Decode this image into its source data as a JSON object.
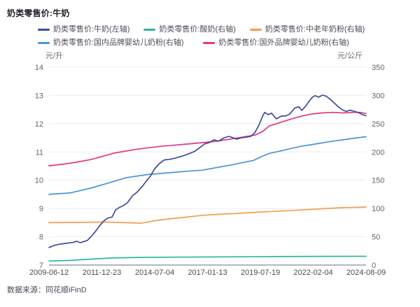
{
  "header": {
    "title": "奶类零售价:牛奶"
  },
  "footer": {
    "source": "数据来源：同花顺iFinD"
  },
  "chart_data": {
    "type": "line",
    "title": "奶类零售价:牛奶",
    "legend_position": "top",
    "grid": true,
    "left_axis": {
      "unit": "元/升",
      "min": 7,
      "max": 14,
      "ticks": [
        14,
        13,
        12,
        11,
        10,
        9,
        8,
        7
      ]
    },
    "right_axis": {
      "unit": "元/公斤",
      "min": 0,
      "max": 350,
      "ticks": [
        350,
        300,
        250,
        200,
        150,
        100,
        50,
        0
      ]
    },
    "x_ticks": [
      "2009-06-12",
      "2011-12-23",
      "2014-07-04",
      "2017-01-13",
      "2019-07-19",
      "2022-02-04",
      "2024-08-09"
    ],
    "x_range_note": "x values in series are fractions 0-1 across the date span 2009-06-12 to 2024-08-09",
    "colors": {
      "grid": "#ececf4",
      "axis_line": "#b3b6c3",
      "tick_text": "#63636e",
      "x_tick_text": "#4a4a55"
    },
    "series": [
      {
        "id": "milk",
        "name": "奶类零售价:牛奶(左轴)",
        "axis": "left",
        "color": "#3d4b9a",
        "points": [
          [
            0,
            7.62
          ],
          [
            0.018,
            7.7
          ],
          [
            0.035,
            7.74
          ],
          [
            0.055,
            7.77
          ],
          [
            0.075,
            7.8
          ],
          [
            0.088,
            7.84
          ],
          [
            0.099,
            7.79
          ],
          [
            0.11,
            7.83
          ],
          [
            0.121,
            7.87
          ],
          [
            0.132,
            8.0
          ],
          [
            0.146,
            8.18
          ],
          [
            0.159,
            8.38
          ],
          [
            0.172,
            8.55
          ],
          [
            0.185,
            8.66
          ],
          [
            0.199,
            8.7
          ],
          [
            0.21,
            8.95
          ],
          [
            0.221,
            9.03
          ],
          [
            0.234,
            9.1
          ],
          [
            0.247,
            9.2
          ],
          [
            0.263,
            9.45
          ],
          [
            0.278,
            9.58
          ],
          [
            0.294,
            9.78
          ],
          [
            0.309,
            10.0
          ],
          [
            0.32,
            10.15
          ],
          [
            0.333,
            10.4
          ],
          [
            0.349,
            10.6
          ],
          [
            0.364,
            10.72
          ],
          [
            0.382,
            10.74
          ],
          [
            0.397,
            10.78
          ],
          [
            0.413,
            10.83
          ],
          [
            0.428,
            10.88
          ],
          [
            0.444,
            10.95
          ],
          [
            0.459,
            11.02
          ],
          [
            0.475,
            11.15
          ],
          [
            0.49,
            11.28
          ],
          [
            0.505,
            11.33
          ],
          [
            0.521,
            11.43
          ],
          [
            0.534,
            11.38
          ],
          [
            0.552,
            11.5
          ],
          [
            0.567,
            11.55
          ],
          [
            0.581,
            11.5
          ],
          [
            0.592,
            11.45
          ],
          [
            0.605,
            11.5
          ],
          [
            0.62,
            11.52
          ],
          [
            0.636,
            11.55
          ],
          [
            0.649,
            11.68
          ],
          [
            0.662,
            11.95
          ],
          [
            0.673,
            12.25
          ],
          [
            0.68,
            12.4
          ],
          [
            0.691,
            12.32
          ],
          [
            0.702,
            12.37
          ],
          [
            0.717,
            12.17
          ],
          [
            0.733,
            12.27
          ],
          [
            0.746,
            12.27
          ],
          [
            0.759,
            12.34
          ],
          [
            0.775,
            12.55
          ],
          [
            0.788,
            12.6
          ],
          [
            0.797,
            12.47
          ],
          [
            0.808,
            12.6
          ],
          [
            0.819,
            12.77
          ],
          [
            0.83,
            12.93
          ],
          [
            0.839,
            12.99
          ],
          [
            0.85,
            12.94
          ],
          [
            0.863,
            13.01
          ],
          [
            0.874,
            12.97
          ],
          [
            0.885,
            12.88
          ],
          [
            0.898,
            12.75
          ],
          [
            0.912,
            12.6
          ],
          [
            0.925,
            12.49
          ],
          [
            0.938,
            12.43
          ],
          [
            0.949,
            12.48
          ],
          [
            0.962,
            12.44
          ],
          [
            0.976,
            12.39
          ],
          [
            0.989,
            12.32
          ],
          [
            1,
            12.28
          ]
        ]
      },
      {
        "id": "yogurt",
        "name": "奶类零售价:酸奶(右轴)",
        "axis": "right",
        "color": "#2bb6a3",
        "points": [
          [
            0,
            7
          ],
          [
            0.06,
            8
          ],
          [
            0.12,
            10
          ],
          [
            0.2,
            12.5
          ],
          [
            0.28,
            13.5
          ],
          [
            0.4,
            14
          ],
          [
            0.55,
            14.5
          ],
          [
            0.7,
            15
          ],
          [
            0.85,
            15.3
          ],
          [
            1,
            15.5
          ]
        ]
      },
      {
        "id": "senior-milk-powder",
        "name": "奶类零售价:中老年奶粉(右轴)",
        "axis": "right",
        "color": "#f49d4c",
        "points": [
          [
            0,
            75
          ],
          [
            0.09,
            75.5
          ],
          [
            0.18,
            76
          ],
          [
            0.24,
            75
          ],
          [
            0.29,
            74
          ],
          [
            0.33,
            78
          ],
          [
            0.37,
            81
          ],
          [
            0.42,
            84
          ],
          [
            0.486,
            88
          ],
          [
            0.53,
            89.5
          ],
          [
            0.6,
            91.5
          ],
          [
            0.66,
            93.5
          ],
          [
            0.73,
            95.5
          ],
          [
            0.8,
            97.5
          ],
          [
            0.86,
            99.5
          ],
          [
            0.93,
            101.5
          ],
          [
            1,
            102.5
          ]
        ]
      },
      {
        "id": "domestic-infant-formula",
        "name": "奶类零售价:国内品牌婴幼儿奶粉(右轴)",
        "axis": "right",
        "color": "#4a94d9",
        "points": [
          [
            0,
            125
          ],
          [
            0.066,
            127.5
          ],
          [
            0.132,
            136
          ],
          [
            0.205,
            148
          ],
          [
            0.243,
            154.5
          ],
          [
            0.31,
            160
          ],
          [
            0.353,
            162
          ],
          [
            0.426,
            165.5
          ],
          [
            0.486,
            168
          ],
          [
            0.53,
            172.5
          ],
          [
            0.574,
            177
          ],
          [
            0.618,
            182
          ],
          [
            0.645,
            185
          ],
          [
            0.673,
            192.5
          ],
          [
            0.695,
            197.5
          ],
          [
            0.729,
            201.5
          ],
          [
            0.762,
            206
          ],
          [
            0.795,
            210
          ],
          [
            0.839,
            214
          ],
          [
            0.883,
            218
          ],
          [
            0.927,
            221.5
          ],
          [
            0.971,
            225
          ],
          [
            1,
            227
          ]
        ]
      },
      {
        "id": "foreign-infant-formula",
        "name": "奶类零售价:国外品牌婴幼儿奶粉(右轴)",
        "axis": "right",
        "color": "#e2387f",
        "points": [
          [
            0,
            175.5
          ],
          [
            0.066,
            180
          ],
          [
            0.132,
            186.5
          ],
          [
            0.205,
            198
          ],
          [
            0.28,
            205
          ],
          [
            0.353,
            210
          ],
          [
            0.426,
            213.5
          ],
          [
            0.486,
            216.5
          ],
          [
            0.53,
            219
          ],
          [
            0.574,
            223
          ],
          [
            0.618,
            227
          ],
          [
            0.651,
            230
          ],
          [
            0.673,
            236
          ],
          [
            0.695,
            246
          ],
          [
            0.717,
            250
          ],
          [
            0.74,
            254
          ],
          [
            0.762,
            258
          ],
          [
            0.784,
            261.5
          ],
          [
            0.806,
            264.5
          ],
          [
            0.828,
            267
          ],
          [
            0.861,
            269
          ],
          [
            0.894,
            270
          ],
          [
            0.927,
            269
          ],
          [
            0.96,
            270
          ],
          [
            0.982,
            270
          ],
          [
            1,
            268
          ]
        ]
      }
    ]
  }
}
